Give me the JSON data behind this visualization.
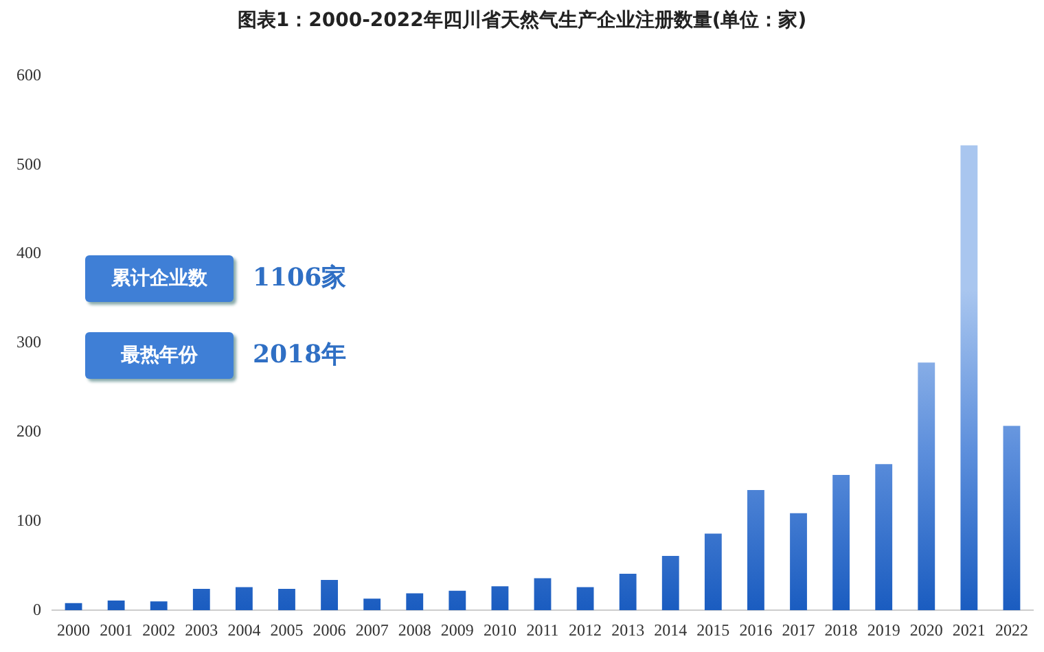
{
  "chart_data": {
    "type": "bar",
    "title": "图表1：2000-2022年四川省天然气生产企业注册数量(单位：家)",
    "categories": [
      "2000",
      "2001",
      "2002",
      "2003",
      "2004",
      "2005",
      "2006",
      "2007",
      "2008",
      "2009",
      "2010",
      "2011",
      "2012",
      "2013",
      "2014",
      "2015",
      "2016",
      "2017",
      "2018",
      "2019",
      "2020",
      "2021",
      "2022"
    ],
    "values": [
      8,
      11,
      10,
      24,
      26,
      24,
      34,
      13,
      19,
      22,
      27,
      36,
      26,
      41,
      61,
      86,
      135,
      109,
      152,
      164,
      278,
      522,
      207
    ],
    "color": "#1a5cc0",
    "ylim": [
      0,
      600
    ],
    "yticks": [
      0,
      100,
      200,
      300,
      400,
      500,
      600
    ],
    "grid": false,
    "legend": false,
    "annotations": [
      "累计企业数",
      "1106家",
      "最热年份",
      "2018年"
    ]
  }
}
